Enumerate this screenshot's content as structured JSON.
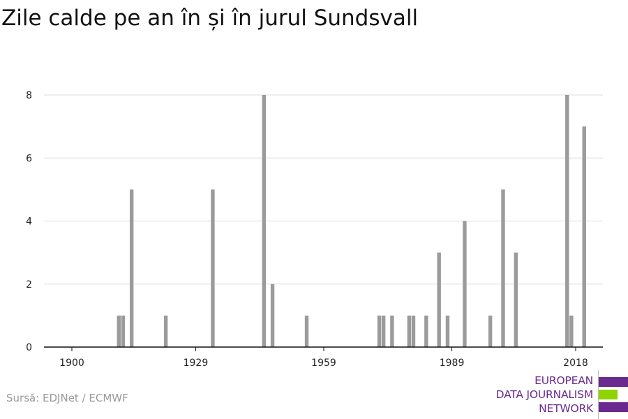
{
  "title": "Zile calde pe an în și în jurul Sundsvall",
  "source": "Sursă: EDJNet / ECMWF",
  "logo": {
    "lines": [
      "EUROPEAN",
      "DATA JOURNALISM",
      "NETWORK"
    ],
    "colors": {
      "purple": "#6a2a8f",
      "green": "#8fd400"
    }
  },
  "chart_data": {
    "type": "bar",
    "title": "Zile calde pe an în și în jurul Sundsvall",
    "xlabel": "",
    "ylabel": "",
    "xlim": [
      1900,
      2020
    ],
    "ylim": [
      0,
      8
    ],
    "x_ticks": [
      "1900",
      "1929",
      "1959",
      "1989",
      "2018"
    ],
    "y_ticks": [
      "0",
      "2",
      "4",
      "6",
      "8"
    ],
    "grid": true,
    "bar_color": "#9b9b9b",
    "x": [
      1911,
      1912,
      1914,
      1922,
      1933,
      1945,
      1947,
      1955,
      1972,
      1973,
      1975,
      1979,
      1980,
      1983,
      1986,
      1988,
      1992,
      1998,
      2001,
      2004,
      2016,
      2017,
      2020
    ],
    "values": [
      1,
      1,
      5,
      1,
      5,
      8,
      2,
      1,
      1,
      1,
      1,
      1,
      1,
      1,
      3,
      1,
      4,
      1,
      5,
      3,
      8,
      1,
      7
    ]
  }
}
